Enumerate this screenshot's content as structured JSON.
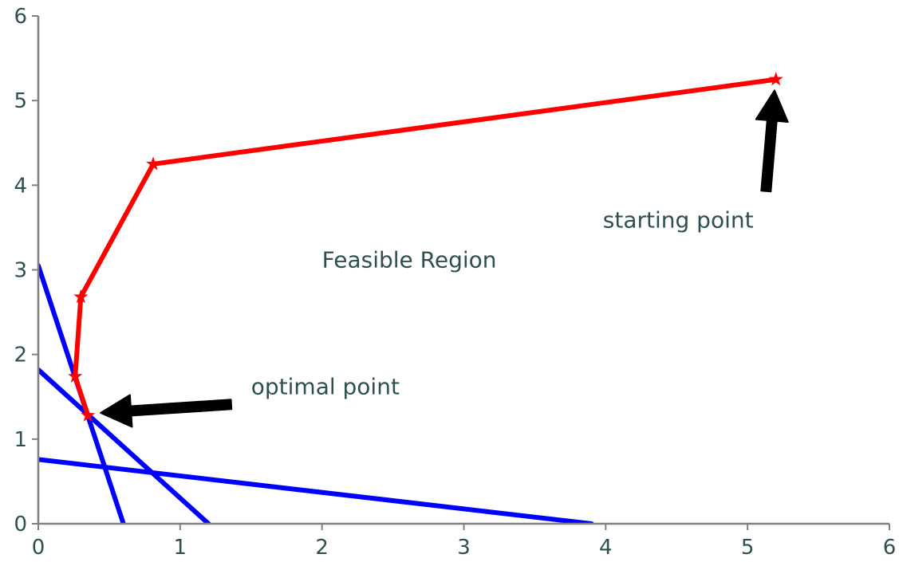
{
  "chart_data": {
    "type": "line",
    "title": "",
    "xlabel": "",
    "ylabel": "",
    "xlim": [
      0,
      6
    ],
    "ylim": [
      0,
      6
    ],
    "xticks": [
      "0",
      "1",
      "2",
      "3",
      "4",
      "5",
      "6"
    ],
    "yticks": [
      "0",
      "1",
      "2",
      "3",
      "4",
      "5",
      "6"
    ],
    "grid": false,
    "constraint_lines": [
      {
        "color": "#0000ff",
        "points": [
          [
            0,
            3.05
          ],
          [
            0.6,
            0
          ]
        ]
      },
      {
        "color": "#0000ff",
        "points": [
          [
            0,
            1.82
          ],
          [
            1.2,
            0
          ]
        ]
      },
      {
        "color": "#0000ff",
        "points": [
          [
            0,
            0.76
          ],
          [
            3.9,
            0
          ]
        ]
      }
    ],
    "series": [
      {
        "color": "#ff0000",
        "marker": "star",
        "points": [
          [
            5.2,
            5.25
          ],
          [
            0.81,
            4.25
          ],
          [
            0.3,
            2.68
          ],
          [
            0.26,
            1.74
          ],
          [
            0.35,
            1.28
          ]
        ]
      }
    ],
    "annotations": [
      {
        "text": "starting point",
        "text_at": [
          3.98,
          3.5
        ],
        "arrow_from": [
          5.13,
          3.93
        ],
        "arrow_to": [
          5.19,
          5.12
        ],
        "color": "#000000"
      },
      {
        "text": "optimal point",
        "text_at": [
          1.5,
          1.53
        ],
        "arrow_from": [
          1.36,
          1.41
        ],
        "arrow_to": [
          0.44,
          1.31
        ],
        "color": "#000000"
      },
      {
        "text": "Feasible Region",
        "text_at": [
          2.0,
          3.03
        ]
      }
    ]
  }
}
